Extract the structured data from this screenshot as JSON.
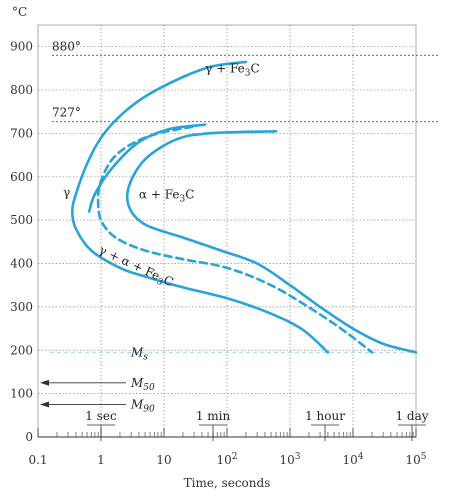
{
  "chart_data": {
    "type": "line",
    "title": "",
    "xlabel": "Time, seconds",
    "ylabel": "°C",
    "x_scale": "log",
    "xlim": [
      0.1,
      100000
    ],
    "ylim": [
      0,
      950
    ],
    "grid": true,
    "x_tick_labels": [
      {
        "value": 0.1,
        "label": "0.1",
        "sup": ""
      },
      {
        "value": 1,
        "label": "1",
        "sup": ""
      },
      {
        "value": 10,
        "label": "10",
        "sup": ""
      },
      {
        "value": 100,
        "label": "10",
        "sup": "2"
      },
      {
        "value": 1000,
        "label": "10",
        "sup": "3"
      },
      {
        "value": 10000,
        "label": "10",
        "sup": "4"
      },
      {
        "value": 100000,
        "label": "10",
        "sup": "5"
      }
    ],
    "y_ticks": [
      0,
      100,
      200,
      300,
      400,
      500,
      600,
      700,
      800,
      900
    ],
    "time_markers": [
      {
        "label": "1 sec",
        "x": 1
      },
      {
        "label": "1 min",
        "x": 60
      },
      {
        "label": "1 hour",
        "x": 3600
      },
      {
        "label": "1 day",
        "x": 86400
      }
    ],
    "reference_lines": [
      {
        "label": "880°",
        "y": 880,
        "style": "dotted"
      },
      {
        "label": "727°",
        "y": 727,
        "style": "dotted"
      },
      {
        "label": "Ms",
        "label_base": "M",
        "label_sub": "s",
        "y": 195,
        "style": "dashed"
      }
    ],
    "arrow_markers": [
      {
        "label": "M50",
        "label_base": "M",
        "label_sub": "50",
        "y": 125
      },
      {
        "label": "M90",
        "label_base": "M",
        "label_sub": "90",
        "y": 75
      }
    ],
    "region_labels": [
      {
        "parts": [
          {
            "t": "γ + Fe"
          },
          {
            "t": "3",
            "sub": true
          },
          {
            "t": "C"
          }
        ],
        "x": 45,
        "y": 840
      },
      {
        "parts": [
          {
            "t": "γ"
          }
        ],
        "x": 0.25,
        "y": 555
      },
      {
        "parts": [
          {
            "t": "α + Fe"
          },
          {
            "t": "3",
            "sub": true
          },
          {
            "t": "C"
          }
        ],
        "x": 4,
        "y": 550
      },
      {
        "parts": [
          {
            "t": "γ + α + Fe"
          },
          {
            "t": "3",
            "sub": true
          },
          {
            "t": "C"
          }
        ],
        "x": 0.9,
        "y": 425,
        "rotate": 25
      }
    ],
    "colors": {
      "curves": "#29a3d8",
      "grid": "#8a8a8a",
      "axis": "#333333",
      "ms_line": "#a8d4ee"
    },
    "series": [
      {
        "name": "",
        "style": "solid",
        "points": [
          [
            200,
            865
          ],
          [
            60,
            855
          ],
          [
            20,
            830
          ],
          [
            5,
            785
          ],
          [
            2,
            740
          ],
          [
            1,
            690
          ],
          [
            0.6,
            630
          ],
          [
            0.4,
            560
          ],
          [
            0.35,
            520
          ],
          [
            0.4,
            480
          ],
          [
            0.7,
            430
          ],
          [
            2,
            390
          ],
          [
            5,
            370
          ],
          [
            20,
            345
          ],
          [
            100,
            320
          ],
          [
            400,
            290
          ],
          [
            1500,
            250
          ],
          [
            4000,
            195
          ]
        ]
      },
      {
        "name": "",
        "style": "dashed",
        "points": [
          [
            28,
            715
          ],
          [
            8,
            700
          ],
          [
            3,
            675
          ],
          [
            1.5,
            640
          ],
          [
            1,
            590
          ],
          [
            0.9,
            550
          ],
          [
            1,
            500
          ],
          [
            1.7,
            460
          ],
          [
            5,
            430
          ],
          [
            20,
            410
          ],
          [
            100,
            390
          ],
          [
            500,
            350
          ],
          [
            2500,
            290
          ],
          [
            8000,
            240
          ],
          [
            20000,
            195
          ]
        ]
      },
      {
        "name": "",
        "style": "solid",
        "points": [
          [
            600,
            705
          ],
          [
            50,
            700
          ],
          [
            15,
            685
          ],
          [
            5,
            640
          ],
          [
            2.8,
            580
          ],
          [
            2.8,
            530
          ],
          [
            5,
            490
          ],
          [
            20,
            460
          ],
          [
            80,
            430
          ],
          [
            300,
            400
          ],
          [
            1000,
            350
          ],
          [
            3000,
            300
          ],
          [
            10000,
            250
          ],
          [
            30000,
            215
          ],
          [
            100000,
            195
          ]
        ]
      },
      {
        "name": "",
        "style": "solid",
        "points": [
          [
            45,
            720
          ],
          [
            12,
            710
          ],
          [
            4,
            680
          ],
          [
            1.5,
            620
          ],
          [
            0.8,
            560
          ],
          [
            0.65,
            520
          ]
        ]
      }
    ]
  }
}
